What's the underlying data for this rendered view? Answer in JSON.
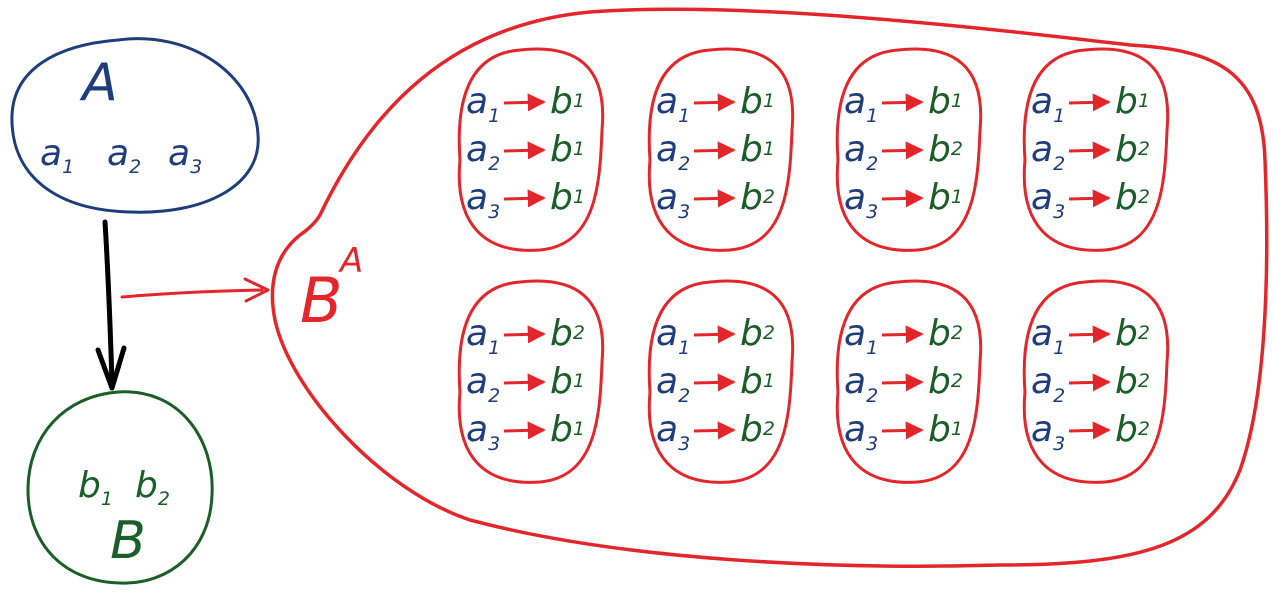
{
  "colors": {
    "domain": "#1f3d7a",
    "codomain": "#1b5e2a",
    "function_space": "#e3262b",
    "arrow": "#000000"
  },
  "set_a": {
    "label": "A",
    "elements": [
      {
        "letter": "a",
        "sub": "1"
      },
      {
        "letter": "a",
        "sub": "2"
      },
      {
        "letter": "a",
        "sub": "3"
      }
    ]
  },
  "set_b": {
    "label": "B",
    "elements": [
      {
        "letter": "b",
        "sub": "1"
      },
      {
        "letter": "b",
        "sub": "2"
      }
    ]
  },
  "function_space": {
    "base": "B",
    "exponent": "A",
    "functions": [
      {
        "maps": [
          {
            "from": "a",
            "from_sub": "1",
            "to": "b",
            "to_sub": "1"
          },
          {
            "from": "a",
            "from_sub": "2",
            "to": "b",
            "to_sub": "1"
          },
          {
            "from": "a",
            "from_sub": "3",
            "to": "b",
            "to_sub": "1"
          }
        ]
      },
      {
        "maps": [
          {
            "from": "a",
            "from_sub": "1",
            "to": "b",
            "to_sub": "1"
          },
          {
            "from": "a",
            "from_sub": "2",
            "to": "b",
            "to_sub": "1"
          },
          {
            "from": "a",
            "from_sub": "3",
            "to": "b",
            "to_sub": "2"
          }
        ]
      },
      {
        "maps": [
          {
            "from": "a",
            "from_sub": "1",
            "to": "b",
            "to_sub": "1"
          },
          {
            "from": "a",
            "from_sub": "2",
            "to": "b",
            "to_sub": "2"
          },
          {
            "from": "a",
            "from_sub": "3",
            "to": "b",
            "to_sub": "1"
          }
        ]
      },
      {
        "maps": [
          {
            "from": "a",
            "from_sub": "1",
            "to": "b",
            "to_sub": "1"
          },
          {
            "from": "a",
            "from_sub": "2",
            "to": "b",
            "to_sub": "2"
          },
          {
            "from": "a",
            "from_sub": "3",
            "to": "b",
            "to_sub": "2"
          }
        ]
      },
      {
        "maps": [
          {
            "from": "a",
            "from_sub": "1",
            "to": "b",
            "to_sub": "2"
          },
          {
            "from": "a",
            "from_sub": "2",
            "to": "b",
            "to_sub": "1"
          },
          {
            "from": "a",
            "from_sub": "3",
            "to": "b",
            "to_sub": "1"
          }
        ]
      },
      {
        "maps": [
          {
            "from": "a",
            "from_sub": "1",
            "to": "b",
            "to_sub": "2"
          },
          {
            "from": "a",
            "from_sub": "2",
            "to": "b",
            "to_sub": "1"
          },
          {
            "from": "a",
            "from_sub": "3",
            "to": "b",
            "to_sub": "2"
          }
        ]
      },
      {
        "maps": [
          {
            "from": "a",
            "from_sub": "1",
            "to": "b",
            "to_sub": "2"
          },
          {
            "from": "a",
            "from_sub": "2",
            "to": "b",
            "to_sub": "2"
          },
          {
            "from": "a",
            "from_sub": "3",
            "to": "b",
            "to_sub": "1"
          }
        ]
      },
      {
        "maps": [
          {
            "from": "a",
            "from_sub": "1",
            "to": "b",
            "to_sub": "2"
          },
          {
            "from": "a",
            "from_sub": "2",
            "to": "b",
            "to_sub": "2"
          },
          {
            "from": "a",
            "from_sub": "3",
            "to": "b",
            "to_sub": "2"
          }
        ]
      }
    ]
  }
}
